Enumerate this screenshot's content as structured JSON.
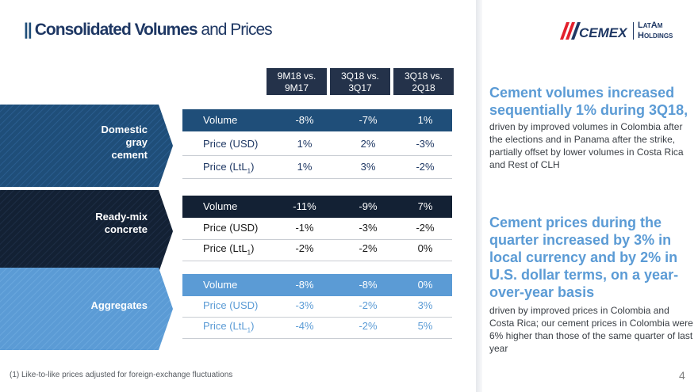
{
  "header": {
    "bars": "||",
    "title_bold": "Consolidated Volumes",
    "title_light": "and Prices"
  },
  "logo": {
    "brand": "CEMEX",
    "latam_line1": "LatAm",
    "latam_line2": "Holdings",
    "colors": {
      "red": "#e3202c",
      "navy": "#1f3864"
    }
  },
  "table": {
    "columns": [
      "9M18 vs. 9M17",
      "3Q18 vs. 3Q17",
      "3Q18 vs. 2Q18"
    ],
    "sections": [
      {
        "label_lines": [
          "Domestic",
          "gray",
          "cement"
        ],
        "header_color": "#1f4e79",
        "text_color": "#1f3864",
        "rows": [
          {
            "name": "Volume",
            "values": [
              "-8%",
              "-7%",
              "1%"
            ]
          },
          {
            "name": "Price (USD)",
            "values": [
              "1%",
              "2%",
              "-3%"
            ]
          },
          {
            "name": "Price (LtL",
            "sub": "1",
            "name_end": ")",
            "values": [
              "1%",
              "3%",
              "-2%"
            ]
          }
        ]
      },
      {
        "label_lines": [
          "Ready-mix",
          "concrete"
        ],
        "header_color": "#132134",
        "text_color": "#1a1a1a",
        "rows": [
          {
            "name": "Volume",
            "values": [
              "-11%",
              "-9%",
              "7%"
            ]
          },
          {
            "name": "Price (USD)",
            "values": [
              "-1%",
              "-3%",
              "-2%"
            ]
          },
          {
            "name": "Price (LtL",
            "sub": "1",
            "name_end": ")",
            "values": [
              "-2%",
              "-2%",
              "0%"
            ]
          }
        ]
      },
      {
        "label_lines": [
          "Aggregates"
        ],
        "header_color": "#5b9bd5",
        "text_color": "#5b9bd5",
        "rows": [
          {
            "name": "Volume",
            "values": [
              "-8%",
              "-8%",
              "0%"
            ]
          },
          {
            "name": "Price (USD)",
            "values": [
              "-3%",
              "-2%",
              "3%"
            ]
          },
          {
            "name": "Price (LtL",
            "sub": "1",
            "name_end": ")",
            "values": [
              "-4%",
              "-2%",
              "5%"
            ]
          }
        ]
      }
    ]
  },
  "footnote": "(1) Like-to-like prices adjusted for foreign-exchange fluctuations",
  "page_number": "4",
  "right": {
    "highlight1": "Cement volumes increased sequentially 1% during 3Q18,",
    "text1": "driven by improved volumes in Colombia after the elections and in Panama after the strike, partially offset by lower volumes in Costa Rica and Rest of CLH",
    "highlight2": "Cement prices during the quarter increased by 3% in local currency and by 2% in U.S. dollar terms, on a year-over-year basis",
    "text2": "driven by improved prices in Colombia and Costa Rica; our cement prices in Colombia were 6% higher than those of the same quarter of last year"
  }
}
